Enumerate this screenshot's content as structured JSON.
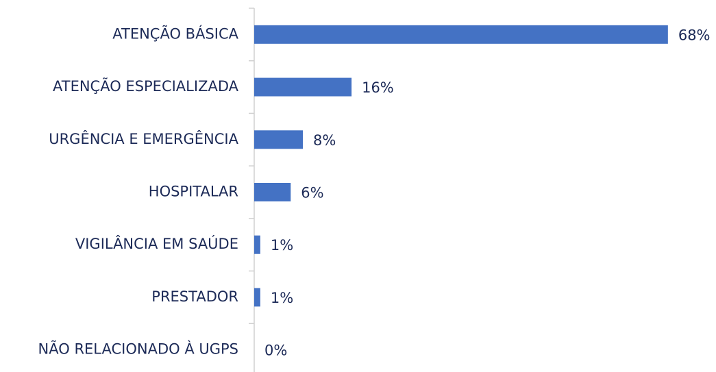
{
  "chart_data": {
    "type": "hbar",
    "categories": [
      "ATENÇÃO BÁSICA",
      "ATENÇÃO ESPECIALIZADA",
      "URGÊNCIA E EMERGÊNCIA",
      "HOSPITALAR",
      "VIGILÂNCIA EM SAÚDE",
      "PRESTADOR",
      "NÃO RELACIONADO À UGPS"
    ],
    "values": [
      68,
      16,
      8,
      6,
      1,
      1,
      0
    ],
    "value_labels": [
      "68%",
      "16%",
      "8%",
      "6%",
      "1%",
      "1%",
      "0%"
    ],
    "color": "#4472c4",
    "xlim": [
      0,
      75
    ]
  }
}
